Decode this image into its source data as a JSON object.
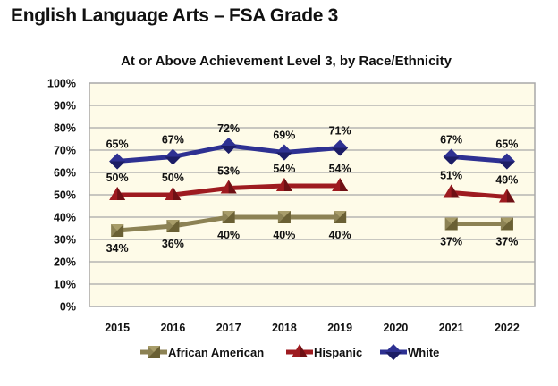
{
  "page_title": "English Language Arts – FSA Grade 3",
  "chart_data": {
    "type": "line",
    "title": "At or Above Achievement Level 3, by Race/Ethnicity",
    "xlabel": "",
    "ylabel": "",
    "categories": [
      "2015",
      "2016",
      "2017",
      "2018",
      "2019",
      "2020",
      "2021",
      "2022"
    ],
    "ylim": [
      0,
      100
    ],
    "yticks": [
      "0%",
      "10%",
      "20%",
      "30%",
      "40%",
      "50%",
      "60%",
      "70%",
      "80%",
      "90%",
      "100%"
    ],
    "grid": true,
    "legend_position": "bottom",
    "plot_background": "#fefbe8",
    "series": [
      {
        "name": "African American",
        "color": "#8c8254",
        "marker_color": "#6a6034",
        "marker": "square",
        "label_position": "below",
        "values": [
          34,
          36,
          40,
          40,
          40,
          null,
          37,
          37
        ],
        "labels": [
          "34%",
          "36%",
          "40%",
          "40%",
          "40%",
          null,
          "37%",
          "37%"
        ]
      },
      {
        "name": "Hispanic",
        "color": "#9e1b20",
        "marker_color": "#6e1014",
        "marker": "triangle",
        "label_position": "above",
        "values": [
          50,
          50,
          53,
          54,
          54,
          null,
          51,
          49
        ],
        "labels": [
          "50%",
          "50%",
          "53%",
          "54%",
          "54%",
          null,
          "51%",
          "49%"
        ]
      },
      {
        "name": "White",
        "color": "#2e3192",
        "marker_color": "#1c1d66",
        "marker": "diamond",
        "label_position": "above",
        "values": [
          65,
          67,
          72,
          69,
          71,
          null,
          67,
          65
        ],
        "labels": [
          "65%",
          "67%",
          "72%",
          "69%",
          "71%",
          null,
          "67%",
          "65%"
        ]
      }
    ]
  }
}
